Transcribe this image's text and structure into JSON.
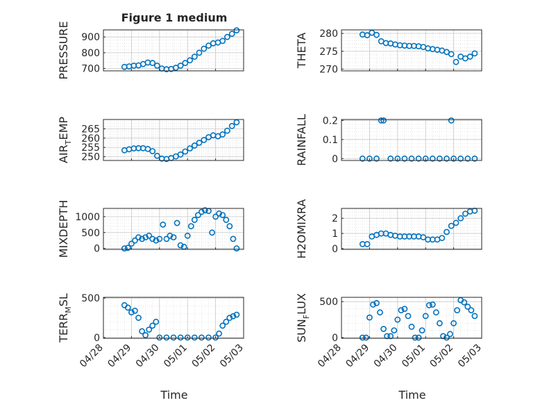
{
  "figure_title": "Figure 1 medium",
  "time_label": "Time",
  "date_ticks": [
    "04/28",
    "04/29",
    "04/30",
    "05/01",
    "05/02",
    "05/03"
  ],
  "marker_color": "#0072BD",
  "chart_data": [
    {
      "type": "scatter",
      "ylabel": "PRESSURE",
      "xlabel": "",
      "xlim": [
        "04/28",
        "05/03"
      ],
      "ylim": [
        685,
        945
      ],
      "yticks": [
        700,
        800,
        900
      ],
      "series": [
        {
          "x": [
            "04/28 18:00",
            "04/28 22:00",
            "04/29 02:00",
            "04/29 06:00",
            "04/29 10:00",
            "04/29 14:00",
            "04/29 18:00",
            "04/29 22:00",
            "04/30 02:00",
            "04/30 06:00",
            "04/30 10:00",
            "04/30 14:00",
            "04/30 18:00",
            "04/30 22:00",
            "05/01 02:00",
            "05/01 06:00",
            "05/01 10:00",
            "05/01 14:00",
            "05/01 18:00",
            "05/01 22:00",
            "05/02 02:00",
            "05/02 06:00",
            "05/02 10:00",
            "05/02 14:00",
            "05/02 18:00"
          ],
          "y": [
            710,
            713,
            718,
            720,
            728,
            738,
            735,
            718,
            700,
            695,
            697,
            705,
            718,
            735,
            752,
            775,
            800,
            825,
            845,
            860,
            865,
            875,
            900,
            920,
            942
          ]
        }
      ]
    },
    {
      "type": "scatter",
      "ylabel": "THETA",
      "xlabel": "",
      "xlim": [
        "04/28",
        "05/03"
      ],
      "ylim": [
        269.5,
        281
      ],
      "yticks": [
        270,
        275,
        280
      ],
      "series": [
        {
          "x": [
            "04/28 18:00",
            "04/28 22:00",
            "04/29 02:00",
            "04/29 06:00",
            "04/29 10:00",
            "04/29 14:00",
            "04/29 18:00",
            "04/29 22:00",
            "04/30 02:00",
            "04/30 06:00",
            "04/30 10:00",
            "04/30 14:00",
            "04/30 18:00",
            "04/30 22:00",
            "05/01 02:00",
            "05/01 06:00",
            "05/01 10:00",
            "05/01 14:00",
            "05/01 18:00",
            "05/01 22:00",
            "05/02 02:00",
            "05/02 06:00",
            "05/02 10:00",
            "05/02 14:00",
            "05/02 18:00"
          ],
          "y": [
            279.7,
            279.5,
            280.2,
            279.6,
            277.8,
            277.3,
            277.2,
            276.9,
            276.7,
            276.6,
            276.5,
            276.5,
            276.4,
            276.2,
            275.8,
            275.6,
            275.4,
            275.2,
            274.8,
            274.2,
            272,
            273.5,
            273,
            273.5,
            274.4
          ]
        }
      ]
    },
    {
      "type": "scatter",
      "ylabel": "AIR_TEMP",
      "xlabel": "",
      "xlim": [
        "04/28",
        "05/03"
      ],
      "ylim": [
        248,
        270
      ],
      "yticks": [
        250,
        255,
        260,
        265
      ],
      "series": [
        {
          "x": [
            "04/28 18:00",
            "04/28 22:00",
            "04/29 02:00",
            "04/29 06:00",
            "04/29 10:00",
            "04/29 14:00",
            "04/29 18:00",
            "04/29 22:00",
            "04/30 02:00",
            "04/30 06:00",
            "04/30 10:00",
            "04/30 14:00",
            "04/30 18:00",
            "04/30 22:00",
            "05/01 02:00",
            "05/01 06:00",
            "05/01 10:00",
            "05/01 14:00",
            "05/01 18:00",
            "05/01 22:00",
            "05/02 02:00",
            "05/02 06:00",
            "05/02 10:00",
            "05/02 14:00",
            "05/02 18:00"
          ],
          "y": [
            253.5,
            254,
            254.5,
            254.6,
            254.6,
            254.2,
            253,
            250.5,
            249,
            248.8,
            249.3,
            250.2,
            251.2,
            252.8,
            254.5,
            256,
            257.5,
            259,
            260.5,
            261.5,
            261,
            262,
            264,
            266.5,
            268.5
          ]
        }
      ]
    },
    {
      "type": "scatter",
      "ylabel": "RAINFALL",
      "xlabel": "",
      "xlim": [
        "04/28",
        "05/03"
      ],
      "ylim": [
        -0.01,
        0.205
      ],
      "yticks": [
        0,
        0.1,
        0.2
      ],
      "series": [
        {
          "x": [
            "04/28 18:00",
            "04/29 00:00",
            "04/29 06:00",
            "04/29 10:00",
            "04/29 12:00",
            "04/29 18:00",
            "04/30 00:00",
            "04/30 06:00",
            "04/30 12:00",
            "04/30 18:00",
            "05/01 00:00",
            "05/01 06:00",
            "05/01 12:00",
            "05/01 18:00",
            "05/01 22:00",
            "05/02 00:00",
            "05/02 06:00",
            "05/02 12:00",
            "05/02 18:00"
          ],
          "y": [
            0,
            0,
            0,
            0.2,
            0.2,
            0,
            0,
            0,
            0,
            0,
            0,
            0,
            0,
            0,
            0.2,
            0,
            0,
            0,
            0
          ]
        }
      ]
    },
    {
      "type": "scatter",
      "ylabel": "MIXDEPTH",
      "xlabel": "",
      "xlim": [
        "04/28",
        "05/03"
      ],
      "ylim": [
        -30,
        1260
      ],
      "yticks": [
        0,
        500,
        1000
      ],
      "series": [
        {
          "x": [
            "04/28 18:00",
            "04/28 21:00",
            "04/29 00:00",
            "04/29 03:00",
            "04/29 06:00",
            "04/29 09:00",
            "04/29 12:00",
            "04/29 15:00",
            "04/29 18:00",
            "04/29 21:00",
            "04/30 00:00",
            "04/30 03:00",
            "04/30 06:00",
            "04/30 09:00",
            "04/30 12:00",
            "04/30 15:00",
            "04/30 18:00",
            "04/30 21:00",
            "05/01 00:00",
            "05/01 03:00",
            "05/01 06:00",
            "05/01 09:00",
            "05/01 12:00",
            "05/01 15:00",
            "05/01 18:00",
            "05/01 21:00",
            "05/02 00:00",
            "05/02 03:00",
            "05/02 06:00",
            "05/02 09:00",
            "05/02 12:00",
            "05/02 15:00",
            "05/02 18:00"
          ],
          "y": [
            0,
            20,
            150,
            250,
            350,
            300,
            350,
            400,
            300,
            250,
            300,
            750,
            300,
            400,
            350,
            800,
            100,
            50,
            400,
            700,
            900,
            1050,
            1150,
            1200,
            1180,
            500,
            1000,
            1100,
            1050,
            900,
            700,
            300,
            0
          ]
        }
      ]
    },
    {
      "type": "scatter",
      "ylabel": "H2OMIXRA",
      "xlabel": "",
      "xlim": [
        "04/28",
        "05/03"
      ],
      "ylim": [
        -0.05,
        2.65
      ],
      "yticks": [
        0,
        1,
        2
      ],
      "series": [
        {
          "x": [
            "04/28 18:00",
            "04/28 22:00",
            "04/29 02:00",
            "04/29 06:00",
            "04/29 10:00",
            "04/29 14:00",
            "04/29 18:00",
            "04/29 22:00",
            "04/30 02:00",
            "04/30 06:00",
            "04/30 10:00",
            "04/30 14:00",
            "04/30 18:00",
            "04/30 22:00",
            "05/01 02:00",
            "05/01 06:00",
            "05/01 10:00",
            "05/01 14:00",
            "05/01 18:00",
            "05/01 22:00",
            "05/02 02:00",
            "05/02 06:00",
            "05/02 10:00",
            "05/02 14:00",
            "05/02 18:00"
          ],
          "y": [
            0.3,
            0.3,
            0.8,
            0.9,
            1.0,
            1.0,
            0.9,
            0.85,
            0.8,
            0.8,
            0.8,
            0.8,
            0.8,
            0.75,
            0.6,
            0.6,
            0.6,
            0.7,
            1.1,
            1.5,
            1.7,
            2.0,
            2.3,
            2.45,
            2.5
          ]
        }
      ]
    },
    {
      "type": "scatter",
      "ylabel": "TERR_MSL",
      "xlabel": "Time",
      "xlim": [
        "04/28",
        "05/03"
      ],
      "ylim": [
        -10,
        510
      ],
      "yticks": [
        0,
        500
      ],
      "series": [
        {
          "x": [
            "04/28 18:00",
            "04/28 21:00",
            "04/29 00:00",
            "04/29 03:00",
            "04/29 06:00",
            "04/29 09:00",
            "04/29 12:00",
            "04/29 15:00",
            "04/29 18:00",
            "04/29 21:00",
            "04/30 00:00",
            "04/30 06:00",
            "04/30 12:00",
            "04/30 18:00",
            "05/01 00:00",
            "05/01 06:00",
            "05/01 12:00",
            "05/01 18:00",
            "05/02 00:00",
            "05/02 03:00",
            "05/02 06:00",
            "05/02 09:00",
            "05/02 12:00",
            "05/02 15:00",
            "05/02 18:00"
          ],
          "y": [
            410,
            380,
            320,
            340,
            250,
            80,
            30,
            100,
            150,
            200,
            0,
            0,
            0,
            0,
            0,
            0,
            0,
            0,
            0,
            50,
            150,
            200,
            250,
            270,
            290
          ]
        }
      ]
    },
    {
      "type": "scatter",
      "ylabel": "SUN_FLUX",
      "xlabel": "Time",
      "xlim": [
        "04/28",
        "05/03"
      ],
      "ylim": [
        -10,
        560
      ],
      "yticks": [
        0,
        500
      ],
      "series": [
        {
          "x": [
            "04/28 18:00",
            "04/28 21:00",
            "04/29 00:00",
            "04/29 03:00",
            "04/29 06:00",
            "04/29 09:00",
            "04/29 12:00",
            "04/29 15:00",
            "04/29 18:00",
            "04/29 21:00",
            "04/30 00:00",
            "04/30 03:00",
            "04/30 06:00",
            "04/30 09:00",
            "04/30 12:00",
            "04/30 15:00",
            "04/30 18:00",
            "04/30 21:00",
            "05/01 00:00",
            "05/01 03:00",
            "05/01 06:00",
            "05/01 09:00",
            "05/01 12:00",
            "05/01 15:00",
            "05/01 18:00",
            "05/01 21:00",
            "05/02 00:00",
            "05/02 03:00",
            "05/02 06:00",
            "05/02 09:00",
            "05/02 12:00",
            "05/02 15:00",
            "05/02 18:00"
          ],
          "y": [
            0,
            0,
            280,
            460,
            480,
            350,
            120,
            20,
            20,
            100,
            250,
            380,
            400,
            300,
            150,
            0,
            0,
            100,
            300,
            450,
            460,
            350,
            200,
            20,
            0,
            50,
            200,
            380,
            520,
            490,
            430,
            380,
            300
          ]
        }
      ]
    }
  ]
}
